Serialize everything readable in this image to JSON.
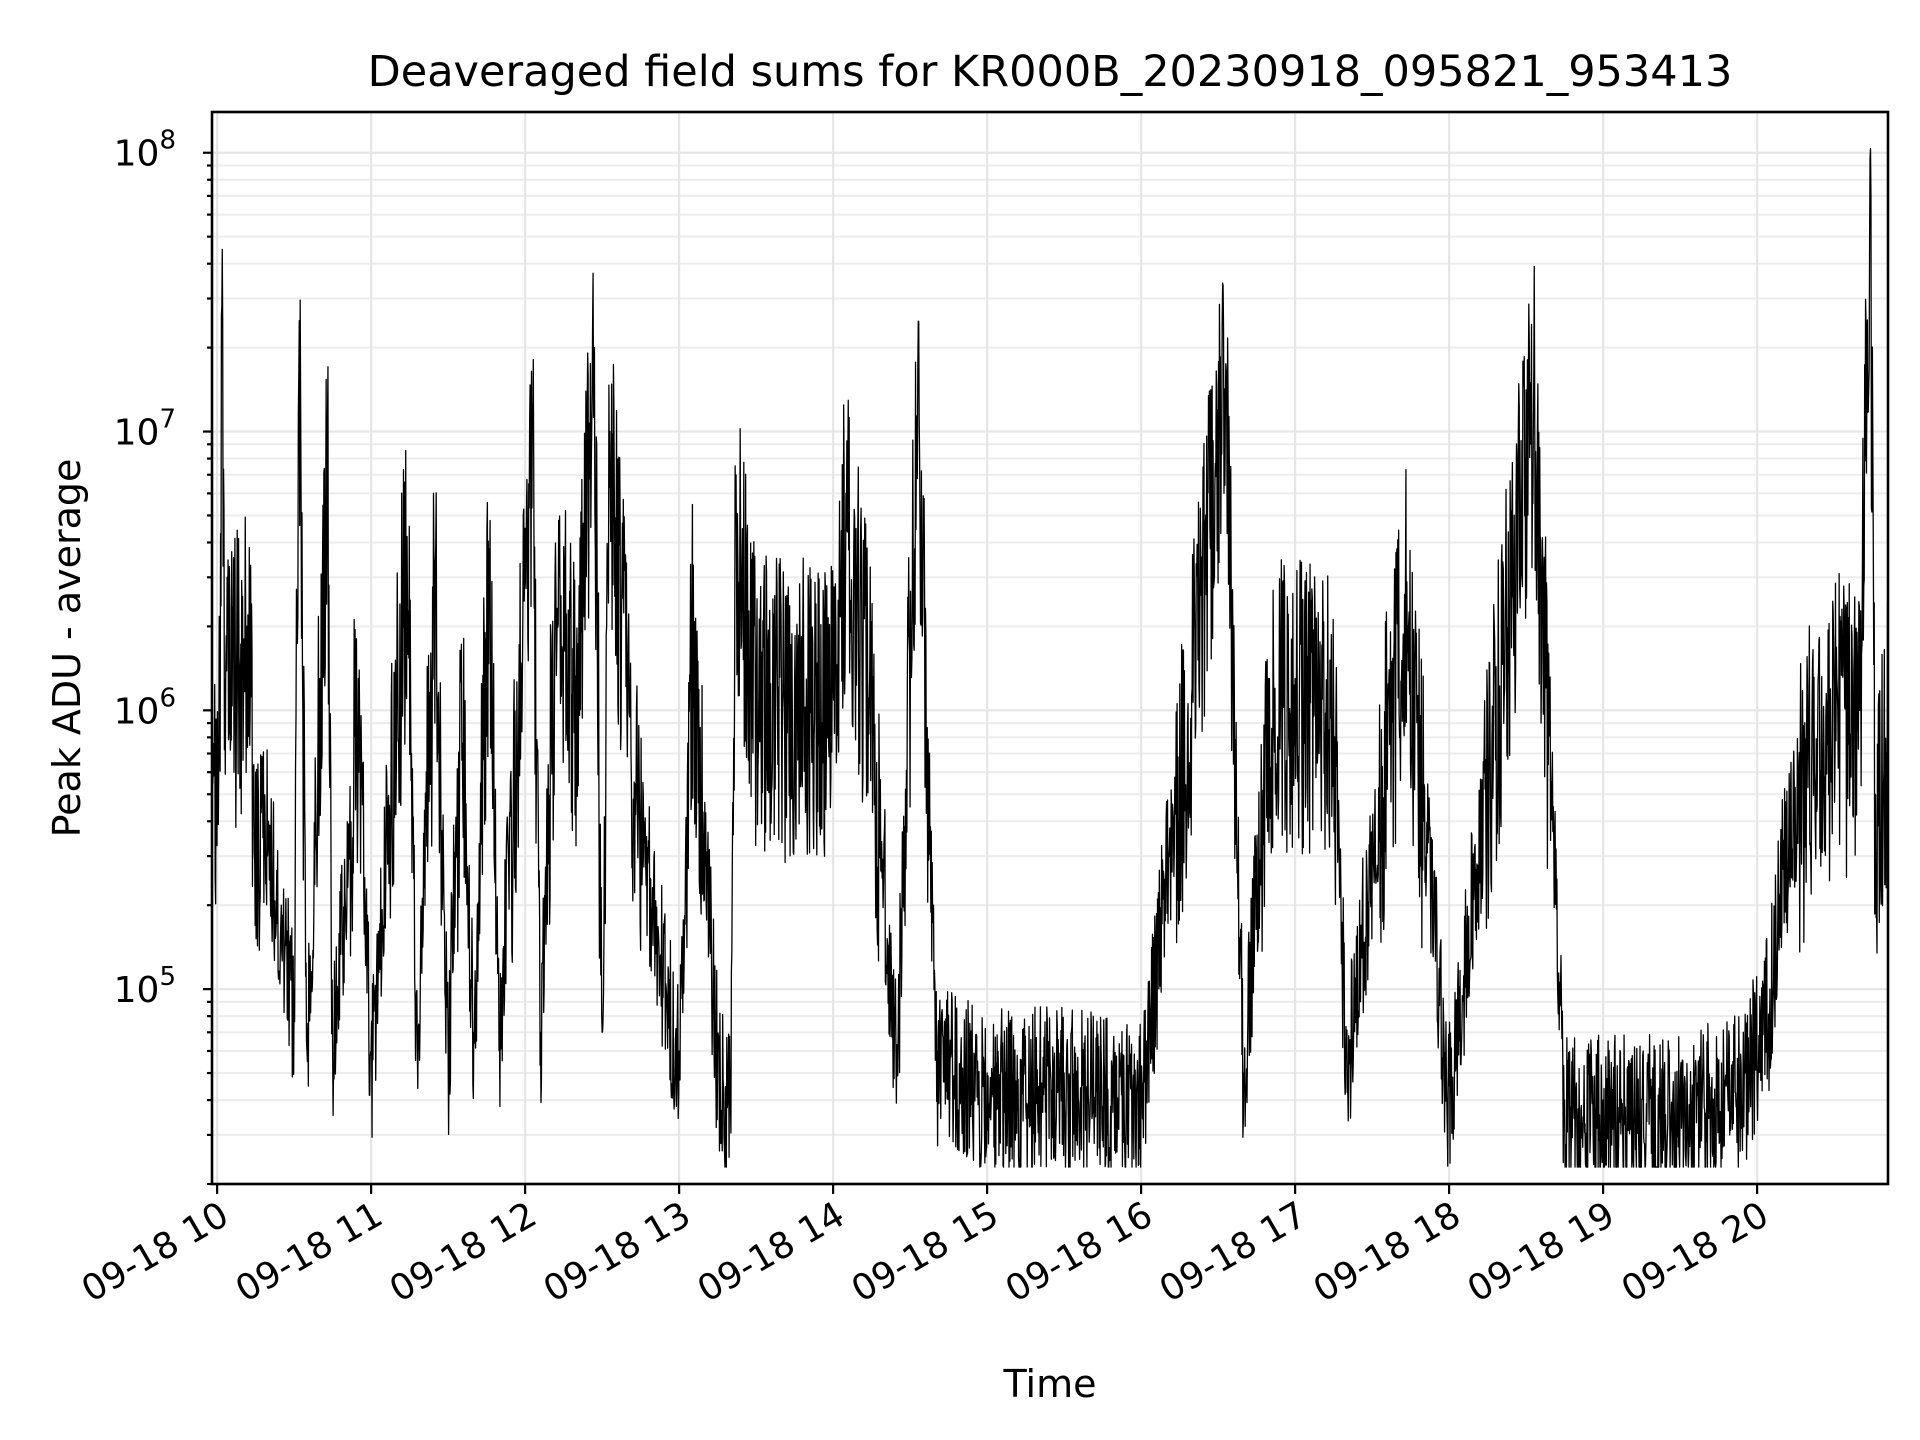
{
  "chart_data": {
    "type": "line",
    "title": "Deaveraged field sums for KR000B_20230918_095821_953413",
    "xlabel": "Time",
    "ylabel": "Peak ADU - average",
    "yscale": "log",
    "ylim": [
      20000,
      140000000
    ],
    "xlim": [
      "2023-09-18 09:58",
      "2023-09-18 20:51"
    ],
    "grid": true,
    "xticks": [
      {
        "value": "2023-09-18 10:00",
        "label": "09-18 10"
      },
      {
        "value": "2023-09-18 11:00",
        "label": "09-18 11"
      },
      {
        "value": "2023-09-18 12:00",
        "label": "09-18 12"
      },
      {
        "value": "2023-09-18 13:00",
        "label": "09-18 13"
      },
      {
        "value": "2023-09-18 14:00",
        "label": "09-18 14"
      },
      {
        "value": "2023-09-18 15:00",
        "label": "09-18 15"
      },
      {
        "value": "2023-09-18 16:00",
        "label": "09-18 16"
      },
      {
        "value": "2023-09-18 17:00",
        "label": "09-18 17"
      },
      {
        "value": "2023-09-18 18:00",
        "label": "09-18 18"
      },
      {
        "value": "2023-09-18 19:00",
        "label": "09-18 19"
      },
      {
        "value": "2023-09-18 20:00",
        "label": "09-18 20"
      }
    ],
    "yticks": [
      {
        "value": 100000,
        "base": "10",
        "exp": "5"
      },
      {
        "value": 1000000,
        "base": "10",
        "exp": "6"
      },
      {
        "value": 10000000,
        "base": "10",
        "exp": "7"
      },
      {
        "value": 100000000,
        "base": "10",
        "exp": "8"
      }
    ],
    "series": [
      {
        "color": "#000000",
        "points": [
          [
            "2023-09-18 09:58",
            400000
          ],
          [
            "2023-09-18 10:01",
            1500000
          ],
          [
            "2023-09-18 10:02",
            45000000
          ],
          [
            "2023-09-18 10:03",
            1300000
          ],
          [
            "2023-09-18 10:08",
            1800000
          ],
          [
            "2023-09-18 10:12",
            2200000
          ],
          [
            "2023-09-18 10:15",
            600000
          ],
          [
            "2023-09-18 10:20",
            400000
          ],
          [
            "2023-09-18 10:25",
            200000
          ],
          [
            "2023-09-18 10:30",
            100000
          ],
          [
            "2023-09-18 10:32",
            25000000
          ],
          [
            "2023-09-18 10:35",
            60000
          ],
          [
            "2023-09-18 10:40",
            1300000
          ],
          [
            "2023-09-18 10:43",
            11000000
          ],
          [
            "2023-09-18 10:45",
            60000
          ],
          [
            "2023-09-18 10:55",
            1300000
          ],
          [
            "2023-09-18 11:00",
            60000
          ],
          [
            "2023-09-18 11:10",
            1300000
          ],
          [
            "2023-09-18 11:14",
            4200000
          ],
          [
            "2023-09-18 11:18",
            60000
          ],
          [
            "2023-09-18 11:25",
            3300000
          ],
          [
            "2023-09-18 11:30",
            60000
          ],
          [
            "2023-09-18 11:35",
            1300000
          ],
          [
            "2023-09-18 11:40",
            70000
          ],
          [
            "2023-09-18 11:46",
            3800000
          ],
          [
            "2023-09-18 11:50",
            70000
          ],
          [
            "2023-09-18 12:00",
            4500000
          ],
          [
            "2023-09-18 12:03",
            11000000
          ],
          [
            "2023-09-18 12:06",
            70000
          ],
          [
            "2023-09-18 12:12",
            2700000
          ],
          [
            "2023-09-18 12:20",
            1400000
          ],
          [
            "2023-09-18 12:27",
            20000000
          ],
          [
            "2023-09-18 12:30",
            70000
          ],
          [
            "2023-09-18 12:33",
            10000000
          ],
          [
            "2023-09-18 12:40",
            1300000
          ],
          [
            "2023-09-18 12:50",
            200000
          ],
          [
            "2023-09-18 13:00",
            60000
          ],
          [
            "2023-09-18 13:05",
            2300000
          ],
          [
            "2023-09-18 13:15",
            60000
          ],
          [
            "2023-09-18 13:20",
            40000
          ],
          [
            "2023-09-18 13:22",
            5300000
          ],
          [
            "2023-09-18 13:30",
            1300000
          ],
          [
            "2023-09-18 13:45",
            1300000
          ],
          [
            "2023-09-18 14:00",
            1300000
          ],
          [
            "2023-09-18 14:05",
            6000000
          ],
          [
            "2023-09-18 14:15",
            1200000
          ],
          [
            "2023-09-18 14:25",
            60000
          ],
          [
            "2023-09-18 14:33",
            17000000
          ],
          [
            "2023-09-18 14:40",
            60000
          ],
          [
            "2023-09-18 15:00",
            50000
          ],
          [
            "2023-09-18 15:30",
            50000
          ],
          [
            "2023-09-18 16:00",
            45000
          ],
          [
            "2023-09-18 16:33",
            17500000
          ],
          [
            "2023-09-18 16:40",
            50000
          ],
          [
            "2023-09-18 16:50",
            1300000
          ],
          [
            "2023-09-18 17:00",
            1300000
          ],
          [
            "2023-09-18 17:15",
            1100000
          ],
          [
            "2023-09-18 17:20",
            60000
          ],
          [
            "2023-09-18 17:43",
            2900000
          ],
          [
            "2023-09-18 18:00",
            45000
          ],
          [
            "2023-09-18 18:33",
            16000000
          ],
          [
            "2023-09-18 18:45",
            40000
          ],
          [
            "2023-09-18 19:00",
            40000
          ],
          [
            "2023-09-18 19:30",
            40000
          ],
          [
            "2023-09-18 19:55",
            50000
          ],
          [
            "2023-09-18 20:05",
            100000
          ],
          [
            "2023-09-18 20:10",
            300000
          ],
          [
            "2023-09-18 20:20",
            800000
          ],
          [
            "2023-09-18 20:30",
            1200000
          ],
          [
            "2023-09-18 20:40",
            1000000
          ],
          [
            "2023-09-18 20:44",
            95000000
          ],
          [
            "2023-09-18 20:46",
            500000
          ],
          [
            "2023-09-18 20:51",
            1000000
          ]
        ]
      }
    ]
  }
}
